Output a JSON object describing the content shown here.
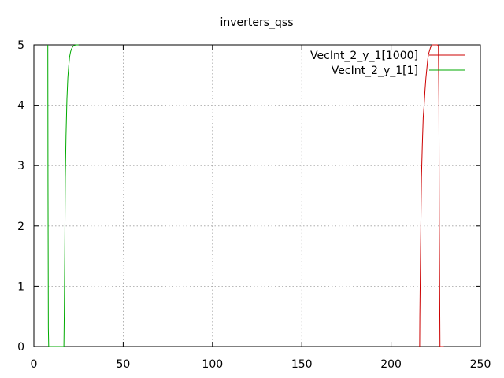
{
  "chart_data": {
    "type": "line",
    "title": "inverters_qss",
    "xlabel": "",
    "ylabel": "",
    "xlim": [
      0,
      250
    ],
    "ylim": [
      0,
      5
    ],
    "x_ticks": [
      "0",
      "50",
      "100",
      "150",
      "200",
      "250"
    ],
    "y_ticks": [
      "0",
      "1",
      "2",
      "3",
      "4",
      "5"
    ],
    "grid": true,
    "legend_position": "top-right",
    "series": [
      {
        "name": "VecInt_2_y_1[1000]",
        "color": "#cc0000",
        "x": [
          216.0,
          216.1,
          216.5,
          217.0,
          217.5,
          218.0,
          218.5,
          219.0,
          219.5,
          220.0,
          220.5,
          221.0,
          221.5,
          222.0,
          222.5,
          223.0,
          224.0,
          226.0,
          226.5,
          226.8,
          227.0,
          227.4,
          229.5
        ],
        "y": [
          0.0,
          0.5,
          1.6,
          2.8,
          3.35,
          3.8,
          4.0,
          4.25,
          4.45,
          4.6,
          4.75,
          4.85,
          4.9,
          4.95,
          4.98,
          5.0,
          5.0,
          5.0,
          4.98,
          4.0,
          2.0,
          0.0,
          0.0
        ]
      },
      {
        "name": "VecInt_2_y_1[1]",
        "color": "#00aa00",
        "x": [
          7.8,
          7.9,
          8.1,
          8.3,
          9.0,
          11.0,
          16.8,
          17.0,
          17.3,
          17.6,
          18.0,
          18.5,
          19.0,
          19.5,
          20.0,
          20.5,
          21.0,
          21.8,
          22.5,
          23.5,
          25.0
        ],
        "y": [
          5.0,
          2.7,
          0.3,
          0.0,
          0.0,
          0.0,
          0.0,
          0.5,
          1.6,
          2.8,
          3.5,
          4.1,
          4.45,
          4.65,
          4.8,
          4.88,
          4.93,
          4.97,
          4.99,
          5.0,
          5.0
        ]
      }
    ]
  }
}
